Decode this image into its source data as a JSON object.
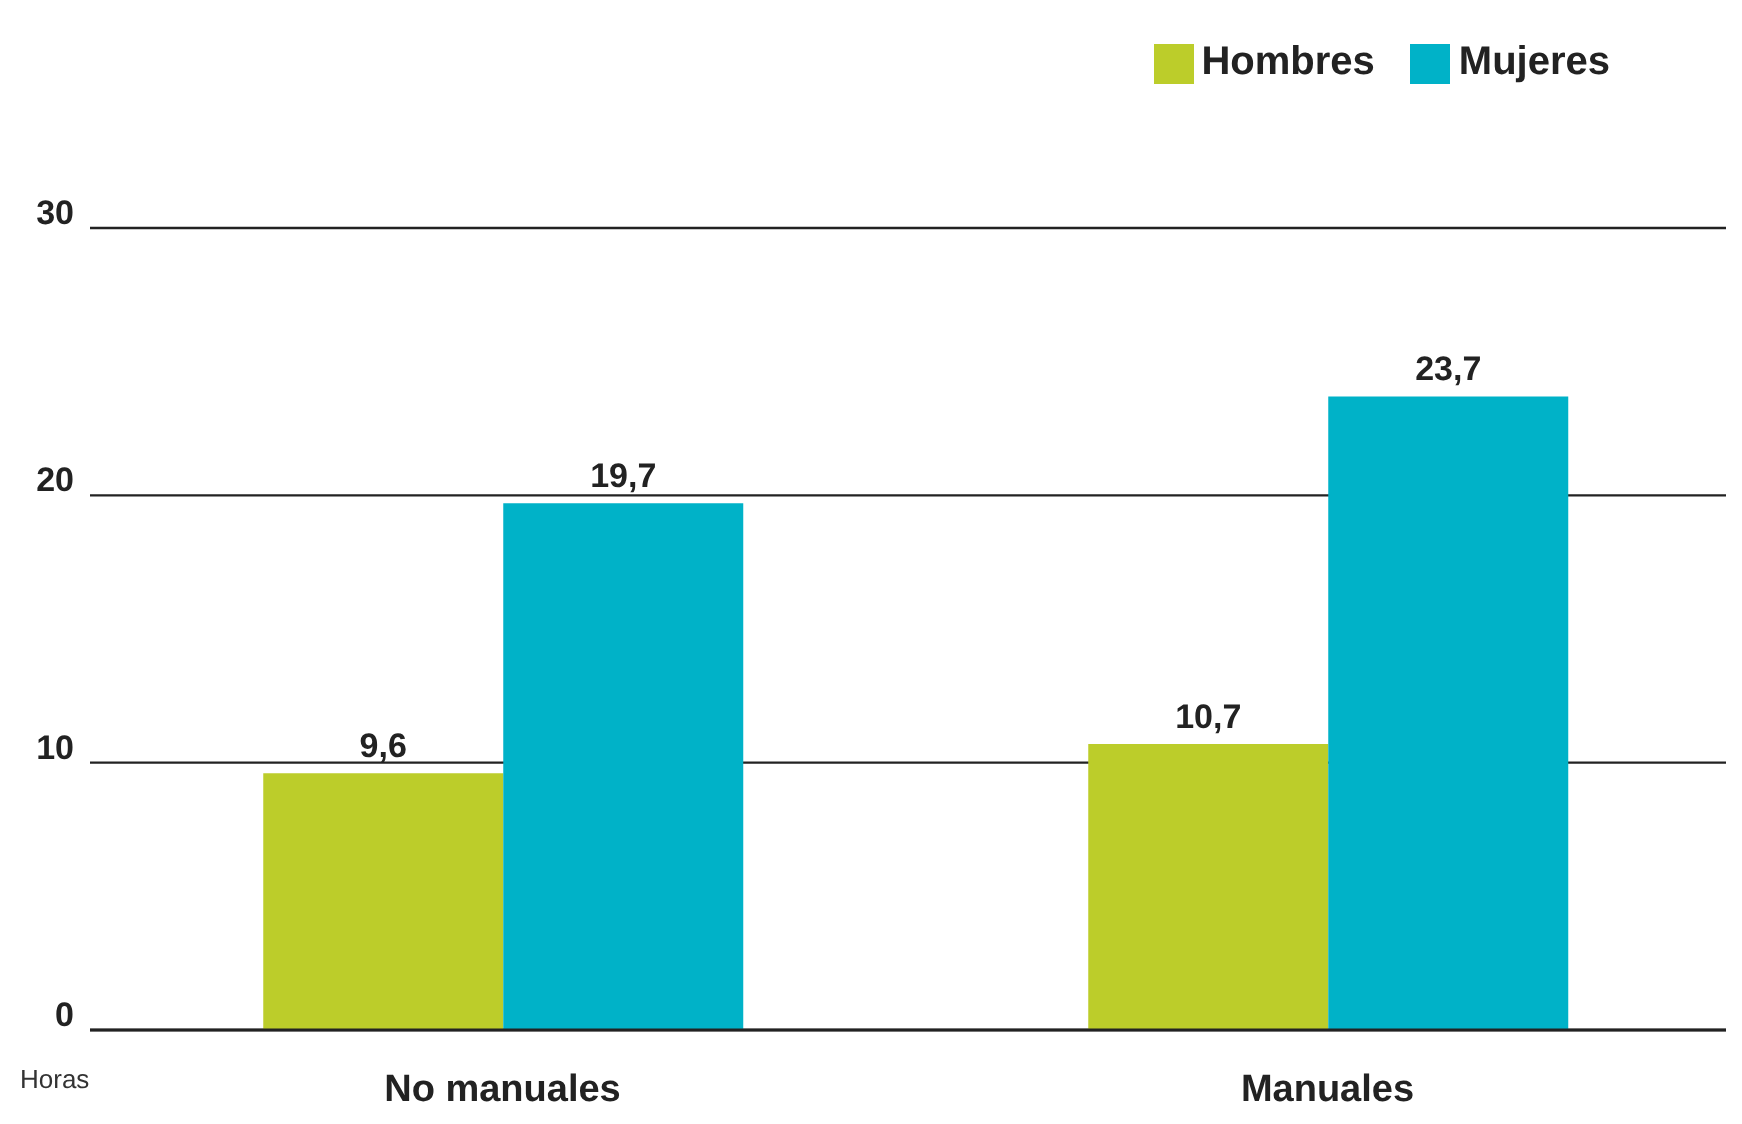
{
  "chart_data": {
    "type": "bar",
    "ylabel": "Horas",
    "categories": [
      "No manuales",
      "Manuales"
    ],
    "series": [
      {
        "name": "Hombres",
        "color": "#bccd2a",
        "values": [
          9.6,
          10.7
        ],
        "value_labels": [
          "9,6",
          "10,7"
        ]
      },
      {
        "name": "Mujeres",
        "color": "#00b2c8",
        "values": [
          19.7,
          23.7
        ],
        "value_labels": [
          "19,7",
          "23,7"
        ]
      }
    ],
    "ylim": [
      0,
      30
    ],
    "yticks": [
      0,
      10,
      20,
      30
    ],
    "grid": "y",
    "legend": "top right"
  }
}
